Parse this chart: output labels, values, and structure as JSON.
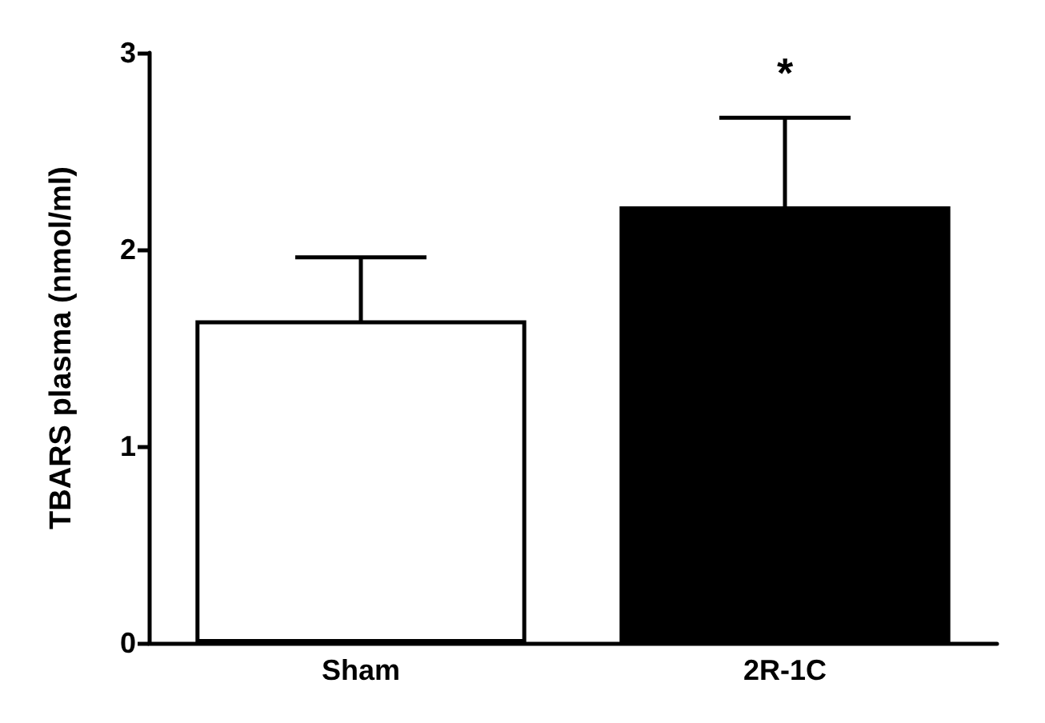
{
  "chart_data": {
    "type": "bar",
    "ylabel": "TBARS plasma (nmol/ml)",
    "categories": [
      "Sham",
      "2R-1C"
    ],
    "values": [
      1.64,
      2.22
    ],
    "colors": [
      "#ffffff",
      "#000000"
    ],
    "errors": [
      0.32,
      0.45
    ],
    "ylim": [
      0,
      3
    ],
    "yticks": [
      0,
      1,
      2,
      3
    ],
    "grid": false,
    "annotations": [
      "*"
    ]
  }
}
